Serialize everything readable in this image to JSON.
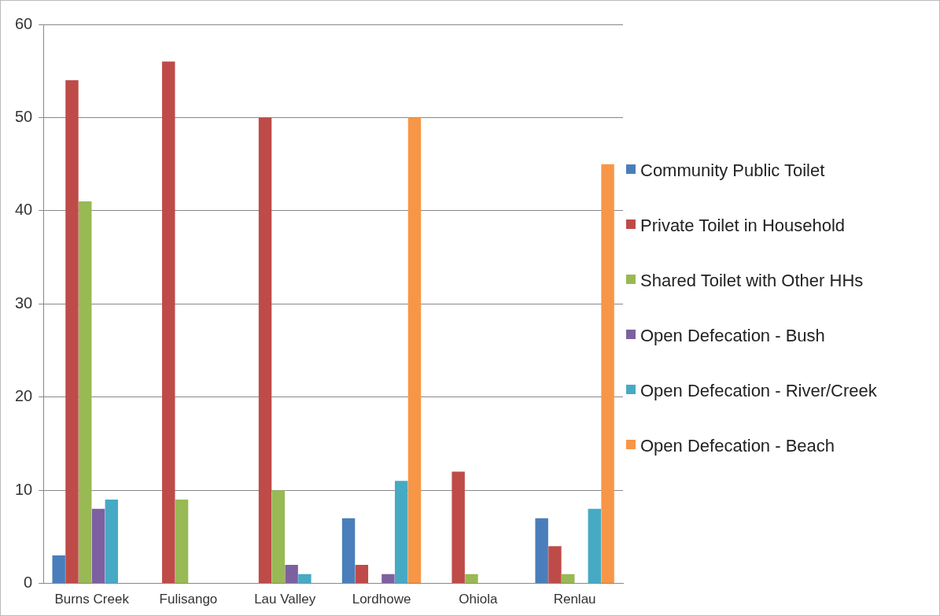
{
  "chart_data": {
    "type": "bar",
    "categories": [
      "Burns Creek",
      "Fulisango",
      "Lau Valley",
      "Lordhowe",
      "Ohiola",
      "Renlau"
    ],
    "series": [
      {
        "name": "Community Public Toilet",
        "color": "#4a7ebb",
        "values": [
          3,
          0,
          0,
          7,
          0,
          7
        ]
      },
      {
        "name": "Private Toilet in Household",
        "color": "#be4b48",
        "values": [
          54,
          56,
          50,
          2,
          12,
          4
        ]
      },
      {
        "name": "Shared Toilet with Other HHs",
        "color": "#98b954",
        "values": [
          41,
          9,
          10,
          0,
          1,
          1
        ]
      },
      {
        "name": "Open Defecation - Bush",
        "color": "#7d60a0",
        "values": [
          8,
          0,
          2,
          1,
          0,
          0
        ]
      },
      {
        "name": "Open Defecation - River/Creek",
        "color": "#46aac5",
        "values": [
          9,
          0,
          1,
          11,
          0,
          8
        ]
      },
      {
        "name": "Open Defecation - Beach",
        "color": "#f79646",
        "values": [
          0,
          0,
          0,
          50,
          0,
          45
        ]
      }
    ],
    "ylim": [
      0,
      60
    ],
    "yticks": [
      0,
      10,
      20,
      30,
      40,
      50,
      60
    ],
    "grid": "y",
    "legend": "right"
  }
}
